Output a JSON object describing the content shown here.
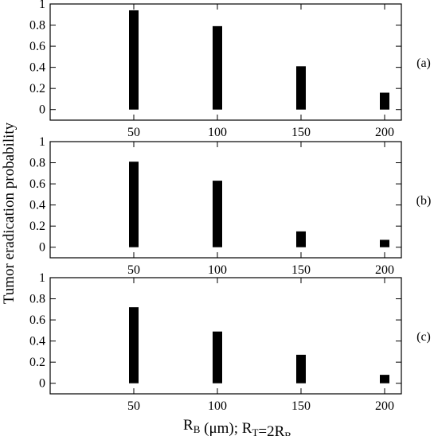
{
  "chart_data": {
    "type": "bar",
    "ylabel": "Tumor eradication probability",
    "xlabel": {
      "parts": [
        {
          "text": "R"
        },
        {
          "text": "B",
          "sub": true
        },
        {
          "text": " (μm);  R"
        },
        {
          "text": "T",
          "sub": true
        },
        {
          "text": "=2R"
        },
        {
          "text": "B",
          "sub": true
        }
      ]
    },
    "x_ticks": [
      50,
      100,
      150,
      200
    ],
    "x_tick_labels": [
      "50",
      "100",
      "150",
      "200"
    ],
    "xlim": [
      0,
      210
    ],
    "y_ticks": [
      0,
      0.2,
      0.4,
      0.6,
      0.8,
      1
    ],
    "y_tick_labels": [
      "0",
      "0.2",
      "0.4",
      "0.6",
      "0.8",
      "1"
    ],
    "ylim": [
      -0.1,
      1
    ],
    "grid": false,
    "panels": [
      {
        "label": "(a)",
        "x": [
          50,
          100,
          150,
          200
        ],
        "values": [
          0.94,
          0.79,
          0.41,
          0.16
        ]
      },
      {
        "label": "(b)",
        "x": [
          50,
          100,
          150,
          200
        ],
        "values": [
          0.81,
          0.63,
          0.15,
          0.07
        ]
      },
      {
        "label": "(c)",
        "x": [
          50,
          100,
          150,
          200
        ],
        "values": [
          0.72,
          0.49,
          0.27,
          0.08
        ]
      }
    ]
  }
}
